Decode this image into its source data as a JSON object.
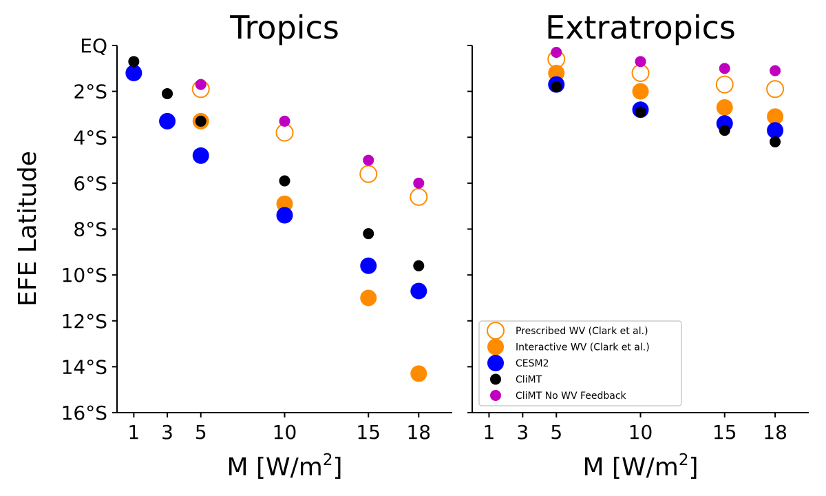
{
  "figure": {
    "ylabel": "EFE Latitude",
    "xlabel_main": "M [W/m",
    "xlabel_sup": "2",
    "xlabel_tail": "]"
  },
  "colors": {
    "prescribed": "#ff8c00",
    "interactive": "#ff8c00",
    "cesm2": "#0000ff",
    "climt": "#000000",
    "climt_nowv": "#c000c0"
  },
  "chart_data": [
    {
      "type": "scatter",
      "title": "Tropics",
      "xlabel": "M [W/m²]",
      "ylabel": "EFE Latitude",
      "x_ticks": [
        1,
        3,
        5,
        10,
        15,
        18
      ],
      "y_ticks": [
        0,
        2,
        4,
        6,
        8,
        10,
        12,
        14,
        16
      ],
      "y_tick_labels": [
        "EQ",
        "2°S",
        "4°S",
        "6°S",
        "8°S",
        "10°S",
        "12°S",
        "14°S",
        "16°S"
      ],
      "xlim": [
        0,
        20
      ],
      "ylim": [
        0,
        16
      ],
      "y_inverted": true,
      "series": [
        {
          "name": "Prescribed WV (Clark et al.)",
          "key": "prescribed",
          "marker": "open-circle",
          "x": [
            5,
            10,
            15,
            18
          ],
          "y": [
            1.9,
            3.8,
            5.6,
            6.6
          ]
        },
        {
          "name": "Interactive WV (Clark et al.)",
          "key": "interactive",
          "marker": "filled-large",
          "x": [
            5,
            10,
            15,
            18
          ],
          "y": [
            3.3,
            6.9,
            11.0,
            14.3
          ]
        },
        {
          "name": "CESM2",
          "key": "cesm2",
          "marker": "filled-large",
          "x": [
            1,
            3,
            5,
            10,
            15,
            18
          ],
          "y": [
            1.2,
            3.3,
            4.8,
            7.4,
            9.6,
            10.7
          ]
        },
        {
          "name": "CliMT",
          "key": "climt",
          "marker": "filled-small",
          "x": [
            1,
            3,
            5,
            10,
            15,
            18
          ],
          "y": [
            0.7,
            2.1,
            3.3,
            5.9,
            8.2,
            9.6
          ]
        },
        {
          "name": "CliMT No WV Feedback",
          "key": "climt_nowv",
          "marker": "filled-small",
          "x": [
            5,
            10,
            15,
            18
          ],
          "y": [
            1.7,
            3.3,
            5.0,
            6.0
          ]
        }
      ]
    },
    {
      "type": "scatter",
      "title": "Extratropics",
      "xlabel": "M [W/m²]",
      "x_ticks": [
        1,
        3,
        5,
        10,
        15,
        18
      ],
      "xlim": [
        0,
        20
      ],
      "ylim": [
        0,
        16
      ],
      "y_inverted": true,
      "legend_position": "lower-left",
      "series": [
        {
          "name": "Prescribed WV (Clark et al.)",
          "key": "prescribed",
          "marker": "open-circle",
          "x": [
            5,
            10,
            15,
            18
          ],
          "y": [
            0.6,
            1.2,
            1.7,
            1.9
          ]
        },
        {
          "name": "Interactive WV (Clark et al.)",
          "key": "interactive",
          "marker": "filled-large",
          "x": [
            5,
            10,
            15,
            18
          ],
          "y": [
            1.2,
            2.0,
            2.7,
            3.1
          ]
        },
        {
          "name": "CESM2",
          "key": "cesm2",
          "marker": "filled-large",
          "x": [
            5,
            10,
            15,
            18
          ],
          "y": [
            1.7,
            2.8,
            3.4,
            3.7
          ]
        },
        {
          "name": "CliMT",
          "key": "climt",
          "marker": "filled-small",
          "x": [
            5,
            10,
            15,
            18
          ],
          "y": [
            1.8,
            2.9,
            3.7,
            4.2
          ]
        },
        {
          "name": "CliMT No WV Feedback",
          "key": "climt_nowv",
          "marker": "filled-small",
          "x": [
            5,
            10,
            15,
            18
          ],
          "y": [
            0.3,
            0.7,
            1.0,
            1.1
          ]
        }
      ]
    }
  ]
}
